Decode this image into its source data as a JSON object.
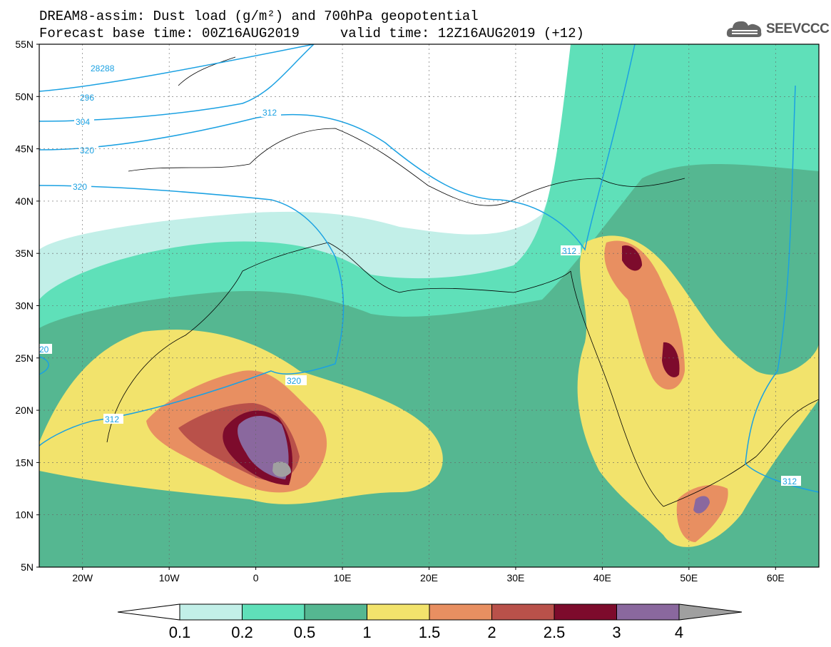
{
  "header": {
    "title_line1": "DREAM8-assim: Dust load (g/m²) and 700hPa geopotential",
    "title_line2": "Forecast base time: 00Z16AUG2019     valid time: 12Z16AUG2019 (+12)",
    "logo_text": "SEEVCCC",
    "logo_icon": "cloud-icon"
  },
  "map": {
    "lon_range": [
      -25,
      65
    ],
    "lat_range": [
      5,
      55
    ],
    "lat_ticks": [
      {
        "value": 55,
        "label": "55N"
      },
      {
        "value": 50,
        "label": "50N"
      },
      {
        "value": 45,
        "label": "45N"
      },
      {
        "value": 40,
        "label": "40N"
      },
      {
        "value": 35,
        "label": "35N"
      },
      {
        "value": 30,
        "label": "30N"
      },
      {
        "value": 25,
        "label": "25N"
      },
      {
        "value": 20,
        "label": "20N"
      },
      {
        "value": 15,
        "label": "15N"
      },
      {
        "value": 10,
        "label": "10N"
      },
      {
        "value": 5,
        "label": "5N"
      }
    ],
    "lon_ticks": [
      {
        "value": -20,
        "label": "20W"
      },
      {
        "value": -10,
        "label": "10W"
      },
      {
        "value": 0,
        "label": "0"
      },
      {
        "value": 10,
        "label": "10E"
      },
      {
        "value": 20,
        "label": "20E"
      },
      {
        "value": 30,
        "label": "30E"
      },
      {
        "value": 40,
        "label": "40E"
      },
      {
        "value": 50,
        "label": "50E"
      },
      {
        "value": 60,
        "label": "60E"
      }
    ],
    "contour_labels": [
      "28288",
      "296",
      "304",
      "312",
      "320",
      "320",
      "320",
      "312",
      "312",
      "312",
      "20"
    ]
  },
  "colorbar": {
    "colors": [
      "#c2efe8",
      "#5fe0b9",
      "#55b791",
      "#f2e36c",
      "#e88f61",
      "#b9514a",
      "#7d0b2c",
      "#8a689e"
    ],
    "under_color": "#ffffff",
    "over_color": "#a0a0a0",
    "labels": [
      "0.1",
      "0.2",
      "0.5",
      "1",
      "1.5",
      "2",
      "2.5",
      "3",
      "4"
    ]
  }
}
